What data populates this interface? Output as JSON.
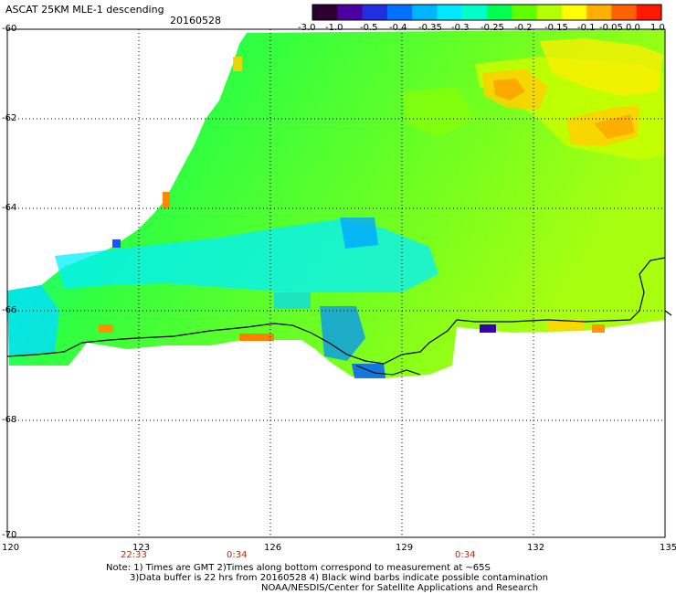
{
  "header": {
    "title": "ASCAT 25KM MLE-1 descending",
    "date": "20160528"
  },
  "colorbar": {
    "labels": [
      "-3.0",
      "-1.0",
      "-0.5",
      "-0.4",
      "-0.35",
      "-0.3",
      "-0.25",
      "-0.2",
      "-0.15",
      "-0.1",
      "-0.05",
      "0.0",
      "1.0"
    ],
    "colors": [
      "#2b0030",
      "#4b00a0",
      "#2030e0",
      "#0070ff",
      "#00b4ff",
      "#00e8ff",
      "#00ffc8",
      "#00ff50",
      "#60ff00",
      "#b4ff00",
      "#ffff00",
      "#ffb000",
      "#ff6000",
      "#ff1800"
    ]
  },
  "map": {
    "lon_labels": [
      "120",
      "123",
      "126",
      "129",
      "132",
      "135"
    ],
    "lat_labels": [
      "-60",
      "-62",
      "-64",
      "-66",
      "-68",
      "-70"
    ],
    "times": [
      "22:33",
      "0:34",
      "0:34"
    ]
  },
  "notes": {
    "line1": "Note: 1) Times are GMT 2)Times along bottom correspond to measurement at ~65S",
    "line2": "3)Data buffer is 22 hrs from 20160528 4) Black wind barbs indicate possible contamination",
    "line3": "NOAA/NESDIS/Center for Satellite Applications and Research"
  }
}
